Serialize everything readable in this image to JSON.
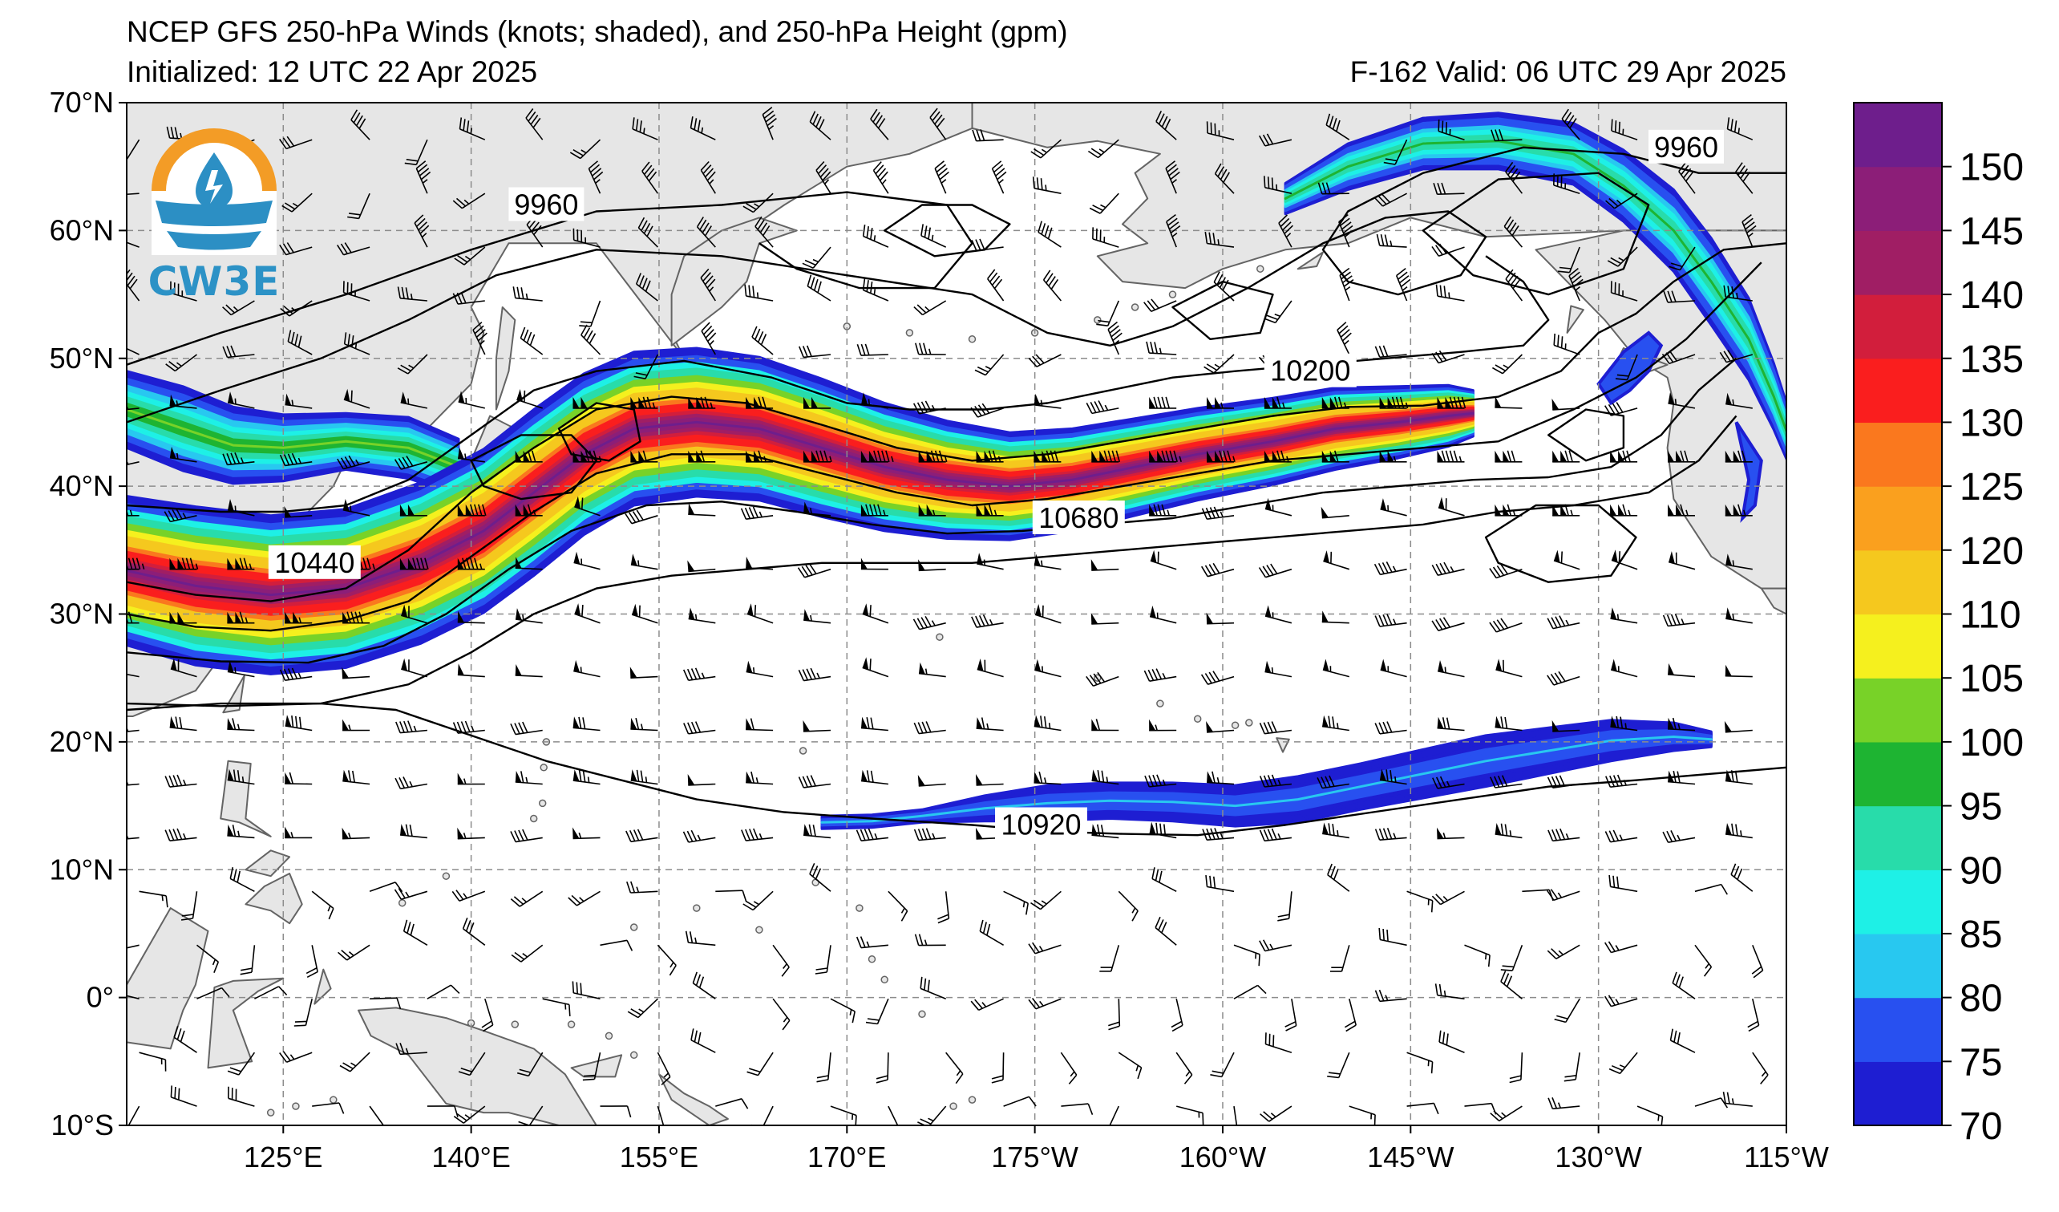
{
  "header": {
    "title": "NCEP GFS 250-hPa Winds (knots; shaded), and 250-hPa Height (gpm)",
    "initialized": "Initialized: 12 UTC 22 Apr 2025",
    "valid": "F-162  Valid: 06 UTC 29 Apr 2025"
  },
  "logo": {
    "text": "CW3E",
    "icon": "water-drop-sun-icon"
  },
  "map": {
    "extent": {
      "lon_min": 112.5,
      "lon_max": 245,
      "lat_min": -10,
      "lat_max": 70
    },
    "lat_labels": [
      "70°N",
      "60°N",
      "50°N",
      "40°N",
      "30°N",
      "20°N",
      "10°N",
      "0°",
      "10°S"
    ],
    "lat_values": [
      70,
      60,
      50,
      40,
      30,
      20,
      10,
      0,
      -10
    ],
    "lon_labels": [
      "125°E",
      "140°E",
      "155°E",
      "170°E",
      "175°W",
      "160°W",
      "145°W",
      "130°W",
      "115°W"
    ],
    "lon_values": [
      125,
      140,
      155,
      170,
      185,
      200,
      215,
      230,
      245
    ],
    "contour_labels": [
      {
        "text": "9960",
        "lon": 146,
        "lat": 62
      },
      {
        "text": "9960",
        "lon": 237,
        "lat": 66.5
      },
      {
        "text": "10200",
        "lon": 207,
        "lat": 49
      },
      {
        "text": "10440",
        "lon": 127.5,
        "lat": 34
      },
      {
        "text": "10680",
        "lon": 188.5,
        "lat": 37.5
      },
      {
        "text": "10920",
        "lon": 185.5,
        "lat": 13.5
      }
    ],
    "jets": [
      {
        "name": "main",
        "core_max_kt": 150
      },
      {
        "name": "subtropical",
        "core_max_kt": 80
      },
      {
        "name": "alaska",
        "core_max_kt": 95
      }
    ]
  },
  "colorbar": {
    "labels": [
      "150",
      "145",
      "140",
      "135",
      "130",
      "125",
      "120",
      "110",
      "105",
      "100",
      "95",
      "90",
      "85",
      "80",
      "75",
      "70"
    ],
    "levels": [
      70,
      75,
      80,
      85,
      90,
      95,
      100,
      105,
      110,
      120,
      125,
      130,
      135,
      140,
      145,
      150,
      155
    ],
    "colors": [
      "#1e1ed2",
      "#2850f0",
      "#28c8f0",
      "#1ef0e6",
      "#28dcaa",
      "#1eb432",
      "#78d228",
      "#f5f01e",
      "#f5c81e",
      "#faa01e",
      "#fa781e",
      "#fa1e1e",
      "#d21e3c",
      "#a01e64",
      "#8c1e78",
      "#6e1e8c"
    ]
  },
  "colors": {
    "land": "#e6e6e6",
    "coast": "#646464",
    "grid": "#8c8c8c",
    "contour": "#000000"
  }
}
